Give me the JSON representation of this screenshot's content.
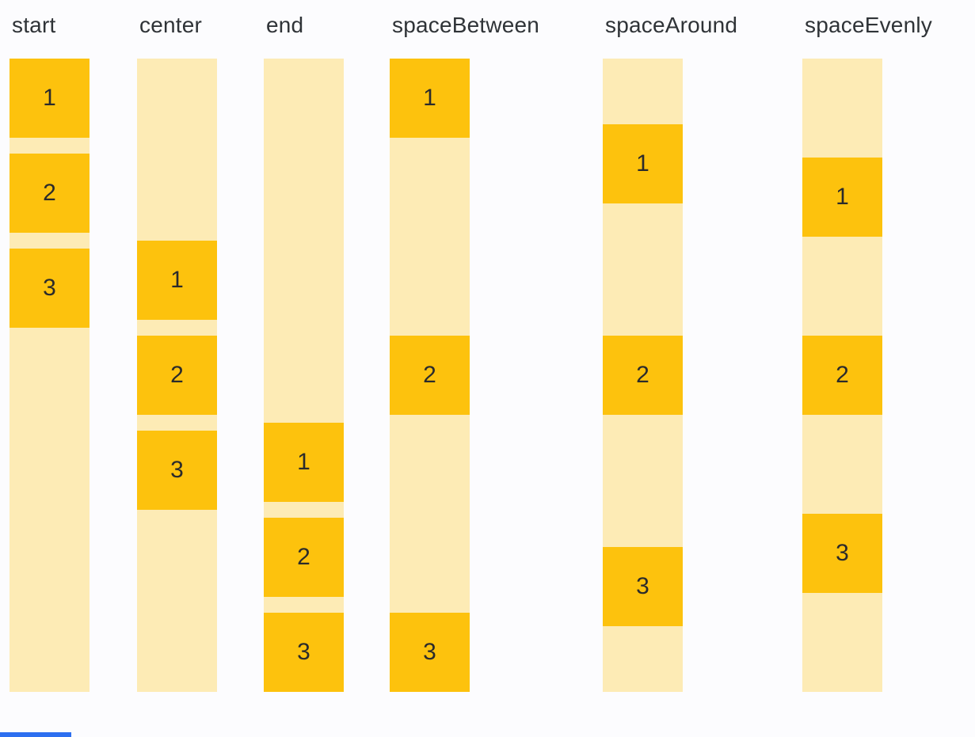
{
  "page": {
    "background_color": "#FCFCFE"
  },
  "colors": {
    "item_box": "#FDC20D",
    "track_background": "#FDEBB5",
    "heading_text": "#2F3337",
    "item_number_text": "#2B2B2B",
    "bottom_bar": "#2D6FF0"
  },
  "columns": [
    {
      "label": "start",
      "items": [
        "1",
        "2",
        "3"
      ]
    },
    {
      "label": "center",
      "items": [
        "1",
        "2",
        "3"
      ]
    },
    {
      "label": "end",
      "items": [
        "1",
        "2",
        "3"
      ]
    },
    {
      "label": "spaceBetween",
      "items": [
        "1",
        "2",
        "3"
      ]
    },
    {
      "label": "spaceAround",
      "items": [
        "1",
        "2",
        "3"
      ]
    },
    {
      "label": "spaceEvenly",
      "items": [
        "1",
        "2",
        "3"
      ]
    }
  ]
}
